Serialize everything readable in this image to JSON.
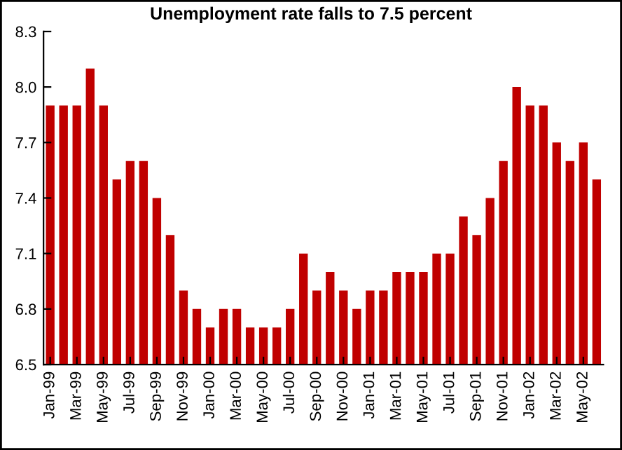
{
  "chart_data": {
    "type": "bar",
    "title": "Unemployment rate falls to 7.5 percent",
    "categories": [
      "Jan-99",
      null,
      "Mar-99",
      null,
      "May-99",
      null,
      "Jul-99",
      null,
      "Sep-99",
      null,
      "Nov-99",
      null,
      "Jan-00",
      null,
      "Mar-00",
      null,
      "May-00",
      null,
      "Jul-00",
      null,
      "Sep-00",
      null,
      "Nov-00",
      null,
      "Jan-01",
      null,
      "Mar-01",
      null,
      "May-01",
      null,
      "Jul-01",
      null,
      "Sep-01",
      null,
      "Nov-01",
      null,
      "Jan-02",
      null,
      "Mar-02",
      null,
      "May-02",
      null
    ],
    "values": [
      7.9,
      7.9,
      7.9,
      8.1,
      7.9,
      7.5,
      7.6,
      7.6,
      7.4,
      7.2,
      6.9,
      6.8,
      6.7,
      6.8,
      6.8,
      6.7,
      6.7,
      6.7,
      6.8,
      7.1,
      6.9,
      7.0,
      6.9,
      6.8,
      6.9,
      6.9,
      7.0,
      7.0,
      7.0,
      7.1,
      7.1,
      7.3,
      7.2,
      7.4,
      7.6,
      8.0,
      7.9,
      7.9,
      7.7,
      7.6,
      7.7,
      7.5
    ],
    "color": "#c00000",
    "ylim": [
      6.5,
      8.3
    ],
    "yticks": [
      {
        "value": 6.5,
        "label": "6.5"
      },
      {
        "value": 6.8,
        "label": "6.8"
      },
      {
        "value": 7.1,
        "label": "7.1"
      },
      {
        "value": 7.4,
        "label": "7.4"
      },
      {
        "value": 7.7,
        "label": "7.7"
      },
      {
        "value": 8.0,
        "label": "8.0"
      },
      {
        "value": 8.3,
        "label": "8.3"
      }
    ],
    "grid": false
  }
}
